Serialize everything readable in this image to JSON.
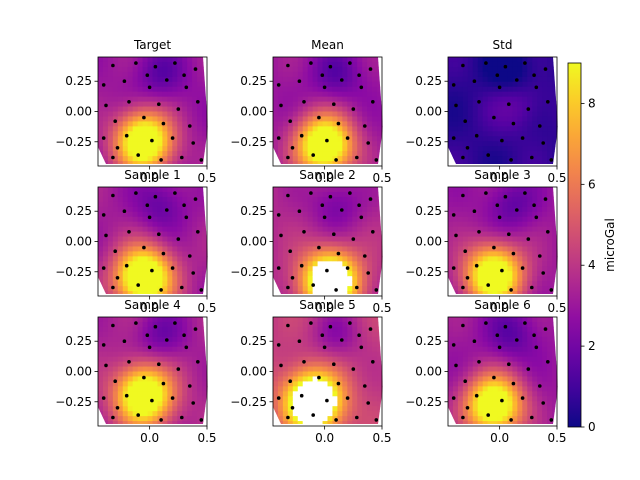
{
  "chart_data": {
    "type": "heatmap",
    "description_free": true,
    "colormap": "plasma",
    "color_range": [
      0,
      9
    ],
    "colorbar": {
      "label": "microGal",
      "ticks": [
        "0",
        "2",
        "4",
        "6",
        "8"
      ],
      "tick_values": [
        0,
        2,
        4,
        6,
        8
      ]
    },
    "xlim": [
      -0.45,
      0.5
    ],
    "ylim": [
      -0.45,
      0.45
    ],
    "x_ticks": [
      "0.0",
      "0.5"
    ],
    "x_tick_values": [
      0.0,
      0.5
    ],
    "y_ticks": [
      "0.25",
      "0.00",
      "−0.25"
    ],
    "y_tick_values": [
      0.25,
      0.0,
      -0.25
    ],
    "panels": [
      {
        "title": "Target",
        "peak": [
          -0.05,
          -0.25
        ],
        "amp": 8.2,
        "bg": 3.0
      },
      {
        "title": "Mean",
        "peak": [
          0.0,
          -0.28
        ],
        "amp": 8.4,
        "bg": 3.0
      },
      {
        "title": "Std",
        "peak": [
          0.15,
          0.1
        ],
        "amp": 1.4,
        "bg": 0.6
      },
      {
        "title": "Sample 1",
        "peak": [
          -0.05,
          -0.3
        ],
        "amp": 8.6,
        "bg": 3.2
      },
      {
        "title": "Sample 2",
        "peak": [
          0.05,
          -0.33
        ],
        "amp": 9.0,
        "bg": 3.6
      },
      {
        "title": "Sample 3",
        "peak": [
          -0.05,
          -0.28
        ],
        "amp": 8.0,
        "bg": 3.1
      },
      {
        "title": "Sample 4",
        "peak": [
          -0.05,
          -0.2
        ],
        "amp": 8.0,
        "bg": 3.4
      },
      {
        "title": "Sample 5",
        "peak": [
          -0.1,
          -0.25
        ],
        "amp": 9.0,
        "bg": 4.2
      },
      {
        "title": "Sample 6",
        "peak": [
          -0.05,
          -0.28
        ],
        "amp": 8.1,
        "bg": 3.0
      }
    ],
    "stations": [
      [
        -0.32,
        0.38
      ],
      [
        -0.12,
        0.4
      ],
      [
        0.05,
        0.37
      ],
      [
        0.22,
        0.4
      ],
      [
        0.4,
        0.35
      ],
      [
        -0.4,
        0.22
      ],
      [
        -0.22,
        0.25
      ],
      [
        0.0,
        0.2
      ],
      [
        0.15,
        0.26
      ],
      [
        0.32,
        0.2
      ],
      [
        -0.38,
        0.05
      ],
      [
        -0.18,
        0.08
      ],
      [
        0.08,
        0.06
      ],
      [
        0.25,
        0.02
      ],
      [
        0.42,
        0.08
      ],
      [
        -0.3,
        -0.08
      ],
      [
        -0.05,
        -0.05
      ],
      [
        0.12,
        -0.1
      ],
      [
        0.35,
        -0.12
      ],
      [
        -0.4,
        -0.22
      ],
      [
        -0.2,
        -0.2
      ],
      [
        0.02,
        -0.24
      ],
      [
        0.2,
        -0.22
      ],
      [
        0.38,
        -0.26
      ],
      [
        -0.32,
        -0.38
      ],
      [
        -0.1,
        -0.36
      ],
      [
        0.1,
        -0.4
      ],
      [
        0.28,
        -0.38
      ],
      [
        0.45,
        -0.4
      ],
      [
        -0.02,
        0.3
      ],
      [
        0.3,
        0.3
      ],
      [
        -0.28,
        -0.3
      ]
    ]
  }
}
